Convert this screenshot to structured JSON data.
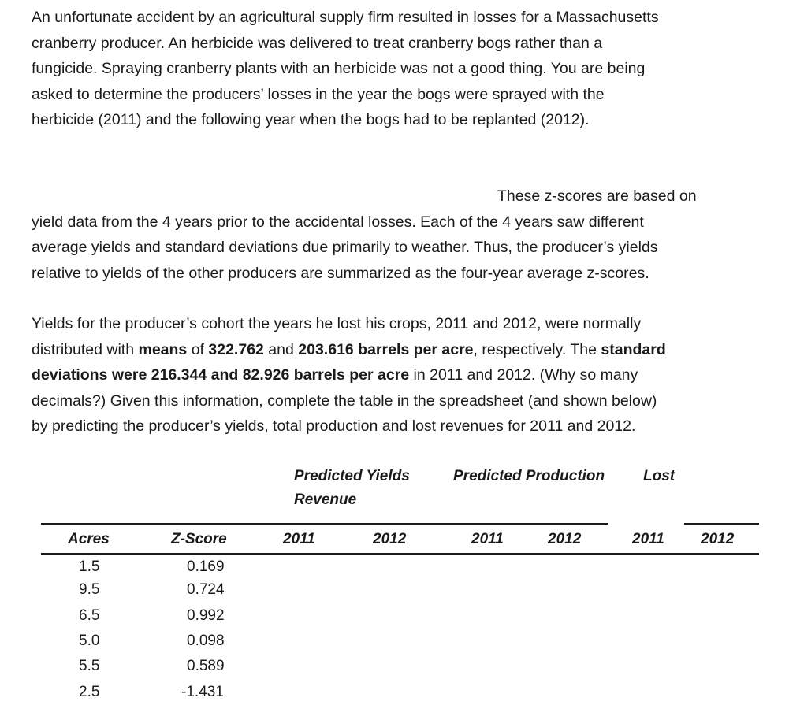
{
  "paragraphs": {
    "p1": [
      "An unfortunate accident by an agricultural supply firm resulted in losses for a Massachusetts",
      "cranberry producer.  An herbicide was delivered to treat cranberry bogs rather than a",
      "fungicide.  Spraying cranberry plants with an herbicide was not a good thing.  You are being",
      "asked to determine the producers’ losses in the year the bogs were sprayed with the",
      "herbicide (2011) and  the following year when the bogs had to be replanted (2012)."
    ],
    "p2_first": "These z-scores are based on",
    "p2": [
      "yield data from the 4 years prior to the accidental losses.  Each of the 4 years saw  different",
      "average yields and standard deviations due primarily to weather.  Thus, the producer’s yields",
      "relative to yields of the other producers are summarized as the four-year average z-scores."
    ],
    "p3": {
      "l1": "Yields for the producer’s cohort the years he lost his crops, 2011 and 2012, were normally",
      "l2a": "distributed with ",
      "l2b": "means",
      "l2c": " of ",
      "l2d": "322.762",
      "l2e": " and ",
      "l2f": "203.616 barrels per acre",
      "l2g": ", respectively. The ",
      "l2h": "standard",
      "l3a": "deviations were 216.344 and 82.926 barrels per acre",
      "l3b": " in 2011 and 2012. (Why so many",
      "l4": "decimals?) Given this information, complete the table in the spreadsheet (and shown below)",
      "l5": "by predicting  the producer’s yields, total production and lost revenues for 2011 and 2012."
    }
  },
  "table": {
    "group_headers": {
      "predicted_yields": "Predicted Yields",
      "revenue": "Revenue",
      "predicted_production": "Predicted Production",
      "lost": "Lost"
    },
    "columns": [
      "Acres",
      "Z-Score",
      "2011",
      "2012",
      "2011",
      "2012",
      "2011",
      "2012"
    ],
    "acres": [
      "1.5",
      "9.5",
      "6.5",
      "5.0",
      "5.5",
      "2.5"
    ],
    "z_scores": [
      "0.169",
      "0.724",
      "0.992",
      "0.098",
      "0.589",
      "-1.431"
    ]
  }
}
